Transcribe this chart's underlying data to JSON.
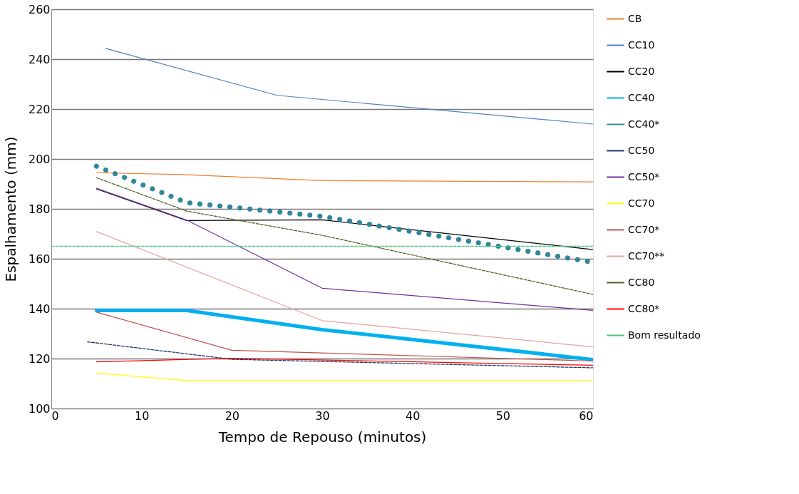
{
  "chart_data": {
    "type": "line",
    "xlabel": "Tempo de Repouso (minutos)",
    "ylabel": "Espalhamento (mm)",
    "xlim": [
      0,
      60
    ],
    "xticks": [
      0,
      10,
      20,
      30,
      40,
      50,
      60
    ],
    "ylim": [
      100,
      260
    ],
    "yticks": [
      100,
      120,
      140,
      160,
      180,
      200,
      220,
      240,
      260
    ],
    "grid": "y",
    "legend": "right",
    "line_style": "solid",
    "series": [
      {
        "name": "CB",
        "color": "#ed7d31",
        "x": [
          5,
          15,
          30,
          60
        ],
        "values": [
          194.5,
          193.7,
          191.3,
          190.8
        ]
      },
      {
        "name": "CC10",
        "color": "#4f81bd",
        "x": [
          6,
          25,
          60
        ],
        "values": [
          244.3,
          225.5,
          214
        ]
      },
      {
        "name": "CC20",
        "color": "#000000",
        "x": [
          5,
          15,
          30,
          60
        ],
        "values": [
          188,
          175.3,
          175.6,
          163.7
        ]
      },
      {
        "name": "CC40",
        "color": "#00b0f0",
        "x": [
          5,
          15,
          30,
          60
        ],
        "values": [
          139.3,
          139.3,
          131.6,
          119.6
        ]
      },
      {
        "name": "CC40*",
        "color": "#31859c",
        "line_style": "dotted",
        "x": [
          5,
          15,
          30,
          60
        ],
        "values": [
          197.1,
          182.5,
          177.0,
          158.6
        ]
      },
      {
        "name": "CC50",
        "color": "#1f3864",
        "line_style": "dashed",
        "x": [
          4,
          20,
          60
        ],
        "values": [
          126.7,
          119.7,
          116.3
        ]
      },
      {
        "name": "CC50*",
        "color": "#7030a0",
        "x": [
          5,
          15,
          30,
          60
        ],
        "values": [
          188.3,
          175.5,
          148.2,
          139.3
        ]
      },
      {
        "name": "CC70",
        "color": "#ffff00",
        "x": [
          5,
          15,
          60
        ],
        "values": [
          114.2,
          111.2,
          111.2
        ]
      },
      {
        "name": "CC70*",
        "color": "#c0504d",
        "x": [
          5,
          20,
          60
        ],
        "values": [
          138.6,
          123.3,
          119.0
        ]
      },
      {
        "name": "CC70**",
        "color": "#e6a0a0",
        "x": [
          5,
          30,
          60
        ],
        "values": [
          170.9,
          135.2,
          124.7
        ]
      },
      {
        "name": "CC80",
        "color": "#4f6228",
        "line_style": "dashed",
        "x": [
          5,
          15,
          30,
          60
        ],
        "values": [
          192.5,
          179.1,
          169.4,
          145.7
        ]
      },
      {
        "name": "CC80*",
        "color": "#ff0000",
        "x": [
          5,
          20,
          60
        ],
        "values": [
          118.7,
          120.1,
          117.3
        ]
      },
      {
        "name": "Bom resultado",
        "color": "#4bc97c",
        "line_style": "dashed",
        "x": [
          0,
          60
        ],
        "values": [
          165,
          165
        ]
      }
    ]
  }
}
